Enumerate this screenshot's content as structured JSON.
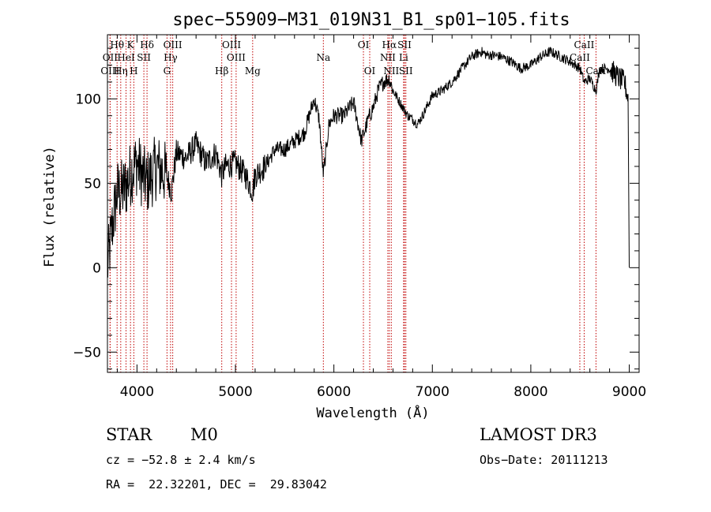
{
  "chart_data": {
    "type": "line",
    "title": "spec−55909−M31_019N31_B1_sp01−105.fits",
    "xlabel": "Wavelength (Å)",
    "ylabel": "Flux (relative)",
    "xlim": [
      3700,
      9100
    ],
    "ylim": [
      -62,
      138
    ],
    "xticks": [
      4000,
      5000,
      6000,
      7000,
      8000,
      9000
    ],
    "yticks": [
      -50,
      0,
      50,
      100
    ],
    "grid": false,
    "series": [
      {
        "name": "flux",
        "x": [
          3700,
          3750,
          3800,
          3850,
          3900,
          3950,
          4000,
          4050,
          4100,
          4200,
          4300,
          4350,
          4400,
          4500,
          4600,
          4700,
          4800,
          4860,
          4900,
          5000,
          5100,
          5175,
          5200,
          5300,
          5400,
          5500,
          5600,
          5700,
          5750,
          5800,
          5850,
          5893,
          5950,
          6000,
          6100,
          6200,
          6280,
          6350,
          6400,
          6450,
          6500,
          6563,
          6600,
          6650,
          6700,
          6750,
          6800,
          6850,
          6900,
          7000,
          7100,
          7200,
          7300,
          7400,
          7500,
          7550,
          7600,
          7700,
          7800,
          7900,
          8000,
          8100,
          8200,
          8300,
          8400,
          8500,
          8542,
          8600,
          8662,
          8700,
          8800,
          8900,
          8950,
          8990,
          9000
        ],
        "y": [
          0,
          25,
          45,
          45,
          50,
          58,
          62,
          55,
          50,
          60,
          55,
          45,
          68,
          65,
          73,
          62,
          68,
          55,
          60,
          62,
          55,
          45,
          55,
          60,
          70,
          70,
          75,
          80,
          90,
          100,
          88,
          55,
          85,
          90,
          90,
          98,
          75,
          88,
          95,
          105,
          110,
          112,
          105,
          100,
          95,
          90,
          88,
          85,
          90,
          102,
          105,
          110,
          118,
          125,
          128,
          126,
          126,
          125,
          122,
          118,
          120,
          125,
          128,
          125,
          122,
          118,
          110,
          112,
          105,
          118,
          118,
          112,
          110,
          100,
          0
        ]
      }
    ],
    "spectral_lines": [
      {
        "label": "Hθ",
        "x": 3798,
        "row": 0
      },
      {
        "label": "K",
        "x": 3934,
        "row": 0
      },
      {
        "label": "Hδ",
        "x": 4102,
        "row": 0
      },
      {
        "label": "OIII",
        "x": 4363,
        "row": 0
      },
      {
        "label": "OIII",
        "x": 4960,
        "row": 0
      },
      {
        "label": "OI",
        "x": 6300,
        "row": 0
      },
      {
        "label": "Hα",
        "x": 6563,
        "row": 0
      },
      {
        "label": "SII",
        "x": 6717,
        "row": 0
      },
      {
        "label": "CaII",
        "x": 8542,
        "row": 0
      },
      {
        "label": "OII",
        "x": 3727,
        "row": 1
      },
      {
        "label": "HeI",
        "x": 3889,
        "row": 1
      },
      {
        "label": "SII",
        "x": 4070,
        "row": 1
      },
      {
        "label": "Hγ",
        "x": 4341,
        "row": 1
      },
      {
        "label": "OIII",
        "x": 5007,
        "row": 1
      },
      {
        "label": "Na",
        "x": 5893,
        "row": 1
      },
      {
        "label": "NII",
        "x": 6548,
        "row": 1
      },
      {
        "label": "Li",
        "x": 6708,
        "row": 1
      },
      {
        "label": "CaII",
        "x": 8498,
        "row": 1
      },
      {
        "label": "OIII",
        "x": 3727,
        "row": 2
      },
      {
        "label": "Hη",
        "x": 3835,
        "row": 2
      },
      {
        "label": "H",
        "x": 3968,
        "row": 2
      },
      {
        "label": "G",
        "x": 4305,
        "row": 2
      },
      {
        "label": "Hβ",
        "x": 4861,
        "row": 2
      },
      {
        "label": "Mg",
        "x": 5175,
        "row": 2
      },
      {
        "label": "OI",
        "x": 6364,
        "row": 2
      },
      {
        "label": "NII",
        "x": 6583,
        "row": 2
      },
      {
        "label": "SII",
        "x": 6731,
        "row": 2
      },
      {
        "label": "CaII",
        "x": 8662,
        "row": 2
      }
    ],
    "colors": {
      "spectrum": "#000000",
      "lines": "#c00000",
      "axes": "#000000"
    }
  },
  "info": {
    "class_label": "STAR",
    "subclass": "M0",
    "survey": "LAMOST DR3",
    "cz": "cz = −52.8 ± 2.4 km/s",
    "obs_date": "Obs−Date: 20111213",
    "coords": "RA =  22.32201, DEC =  29.83042"
  }
}
